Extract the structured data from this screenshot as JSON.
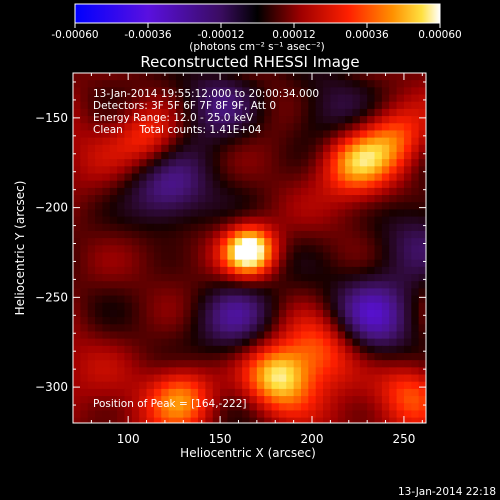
{
  "colorbar": {
    "ticks": [
      -0.0006,
      -0.00036,
      -0.00012,
      0.00012,
      0.00036,
      0.0006
    ],
    "tick_labels": [
      "-0.00060",
      "-0.00036",
      "-0.00012",
      "0.00012",
      "0.00036",
      "0.00060"
    ],
    "unit_label": "(photons cm⁻² s⁻¹ asec⁻²)",
    "range": [
      -0.0006,
      0.0006
    ],
    "colormap": "blue-purple-black-red-orange-yellow-white"
  },
  "chart_data": {
    "type": "heatmap",
    "title": "Reconstructed RHESSI Image",
    "xlabel": "Heliocentric X (arcsec)",
    "ylabel": "Heliocentric Y (arcsec)",
    "xlim": [
      70,
      262
    ],
    "ylim": [
      -320,
      -125
    ],
    "xticks": [
      100,
      150,
      200,
      250
    ],
    "yticks": [
      -150,
      -200,
      -250,
      -300
    ],
    "annotations": [
      "13-Jan-2014 19:55:12.000 to 20:00:34.000",
      "Detectors: 3F 5F 6F 7F 8F 9F, Att 0",
      "Energy Range: 12.0 - 25.0 keV",
      "Clean     Total counts: 1.41E+04"
    ],
    "peak_label": "Position of Peak = [164,-222]",
    "peak": [
      164,
      -222
    ],
    "sources": [
      {
        "x": 164,
        "y": -222,
        "intensity": 1.0
      },
      {
        "x": 180,
        "y": -292,
        "intensity": 0.75
      },
      {
        "x": 127,
        "y": -303,
        "intensity": 0.55
      },
      {
        "x": 222,
        "y": -172,
        "intensity": 0.55
      },
      {
        "x": 243,
        "y": -160,
        "intensity": 0.5
      },
      {
        "x": 252,
        "y": -300,
        "intensity": 0.45
      },
      {
        "x": 110,
        "y": -160,
        "intensity": 0.45
      },
      {
        "x": 205,
        "y": -275,
        "intensity": 0.4
      }
    ],
    "negative_regions": [
      {
        "x": 118,
        "y": -190,
        "intensity": -0.6
      },
      {
        "x": 157,
        "y": -258,
        "intensity": -0.55
      },
      {
        "x": 232,
        "y": -258,
        "intensity": -0.55
      },
      {
        "x": 148,
        "y": -138,
        "intensity": -0.45
      },
      {
        "x": 255,
        "y": -215,
        "intensity": -0.45
      },
      {
        "x": 205,
        "y": -148,
        "intensity": -0.35
      }
    ]
  },
  "timestamp": "13-Jan-2014 22:18"
}
